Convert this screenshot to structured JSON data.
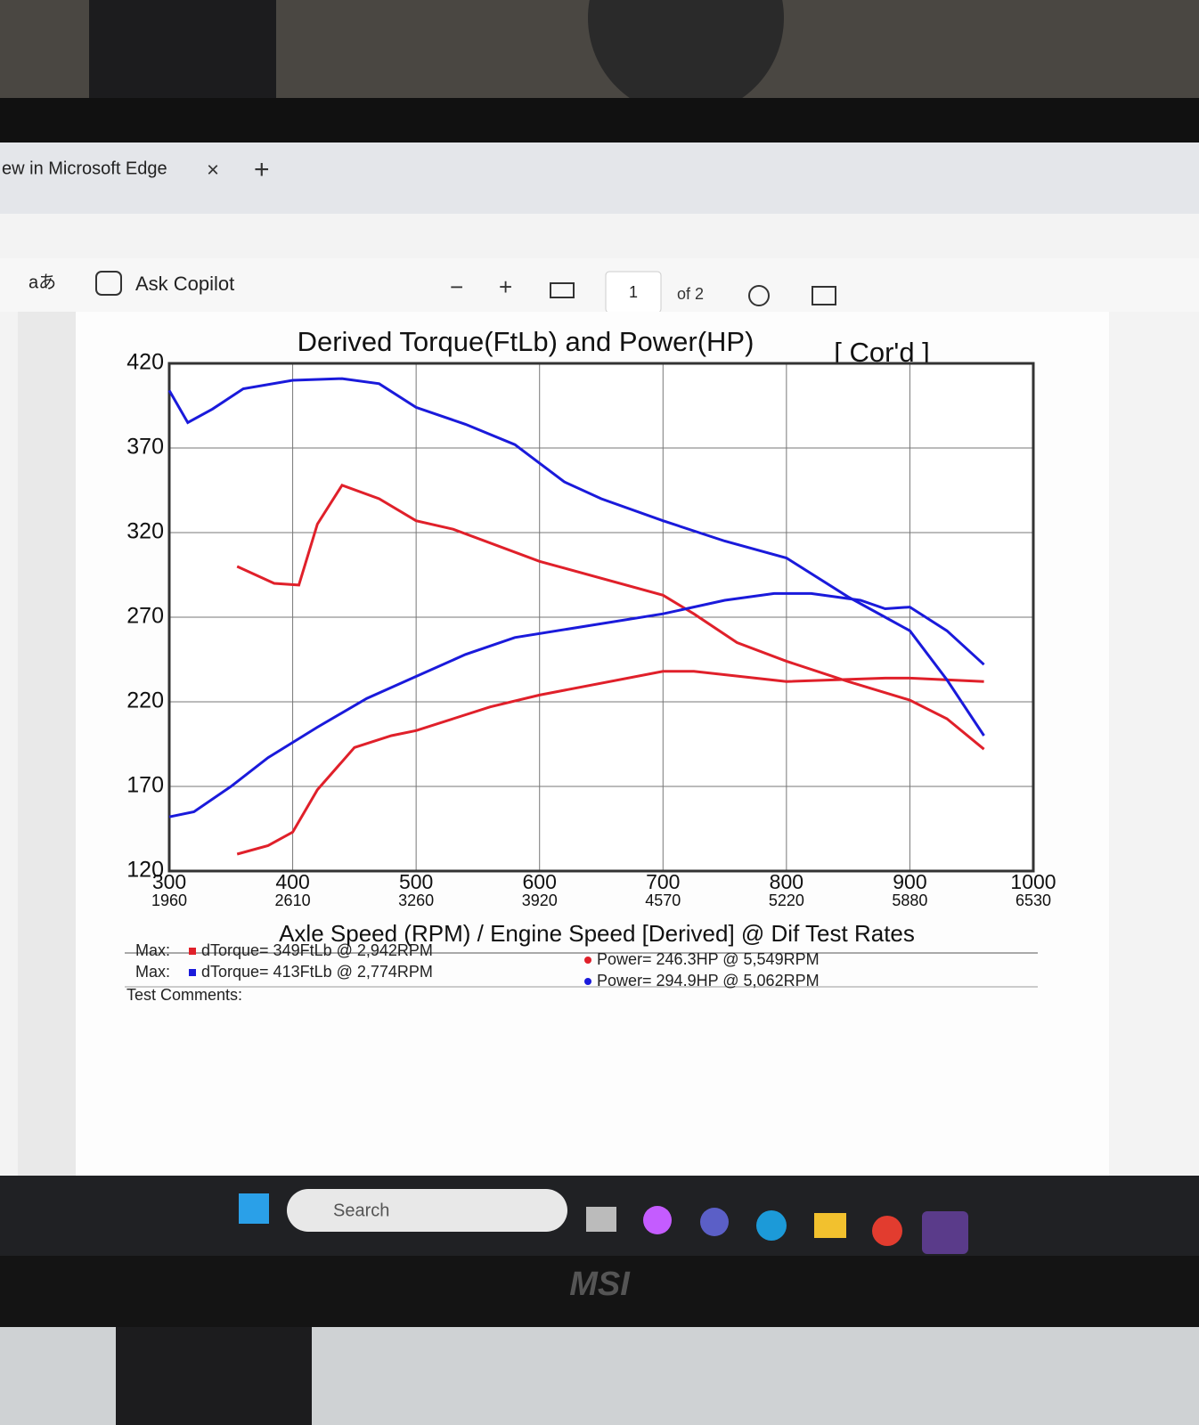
{
  "browser": {
    "tab_title": "ew in Microsoft Edge",
    "translate": "aあ",
    "copilot": "Ask Copilot",
    "page": "1",
    "page_count": "of 2"
  },
  "taskbar": {
    "search": "Search"
  },
  "monitor_brand": "MSI",
  "chart_data": {
    "type": "line",
    "title": "Derived Torque(FtLb) and Power(HP)",
    "subtitle": "[ Cor'd ]",
    "x_label": "Axle Speed (RPM) / Engine Speed [Derived] @ Dif Test Rates",
    "xlim": [
      300,
      1000
    ],
    "xticks": [
      300,
      400,
      500,
      600,
      700,
      800,
      900,
      1000
    ],
    "engine_speed_ticks": [
      1960,
      2610,
      3260,
      3920,
      4570,
      5220,
      5880,
      6530
    ],
    "ylim": [
      120,
      420
    ],
    "yticks": [
      120,
      170,
      220,
      270,
      320,
      370,
      420
    ],
    "grid": true,
    "series": [
      {
        "color": "#e0202a",
        "x": [
          355,
          385,
          405,
          420,
          440,
          470,
          500,
          530,
          600,
          700,
          725,
          760,
          800,
          850,
          900,
          930,
          960
        ],
        "values": [
          300,
          290,
          289,
          325,
          348,
          340,
          327,
          322,
          303,
          283,
          272,
          255,
          244,
          232,
          221,
          210,
          192
        ]
      },
      {
        "color": "#e0202a",
        "x": [
          355,
          380,
          400,
          420,
          450,
          480,
          500,
          530,
          560,
          600,
          700,
          725,
          800,
          880,
          900,
          960
        ],
        "values": [
          130,
          135,
          143,
          168,
          193,
          200,
          203,
          210,
          217,
          224,
          238,
          238,
          232,
          234,
          234,
          232
        ]
      },
      {
        "color": "#1a1adb",
        "x": [
          300,
          315,
          335,
          360,
          400,
          440,
          470,
          500,
          540,
          580,
          620,
          650,
          700,
          750,
          800,
          850,
          880,
          900,
          930,
          960
        ],
        "values": [
          404,
          385,
          393,
          405,
          410,
          411,
          408,
          394,
          384,
          372,
          350,
          340,
          327,
          315,
          305,
          282,
          270,
          262,
          233,
          200
        ]
      },
      {
        "color": "#1a1adb",
        "x": [
          300,
          320,
          350,
          380,
          420,
          460,
          500,
          540,
          580,
          640,
          700,
          750,
          790,
          820,
          860,
          880,
          900,
          930,
          960
        ],
        "values": [
          152,
          155,
          170,
          187,
          205,
          222,
          235,
          248,
          258,
          265,
          272,
          280,
          284,
          284,
          280,
          275,
          276,
          262,
          242
        ]
      }
    ],
    "stats": [
      {
        "label": "Max:",
        "color": "#e0202a",
        "text": "dTorque= 349FtLb @ 2,942RPM"
      },
      {
        "label": "Max:",
        "color": "#1a1adb",
        "text": "dTorque= 413FtLb @ 2,774RPM"
      },
      {
        "color": "#e0202a",
        "text": "Power= 246.3HP @ 5,549RPM"
      },
      {
        "color": "#1a1adb",
        "text": "Power= 294.9HP @ 5,062RPM"
      }
    ],
    "comments_label": "Test Comments:"
  }
}
